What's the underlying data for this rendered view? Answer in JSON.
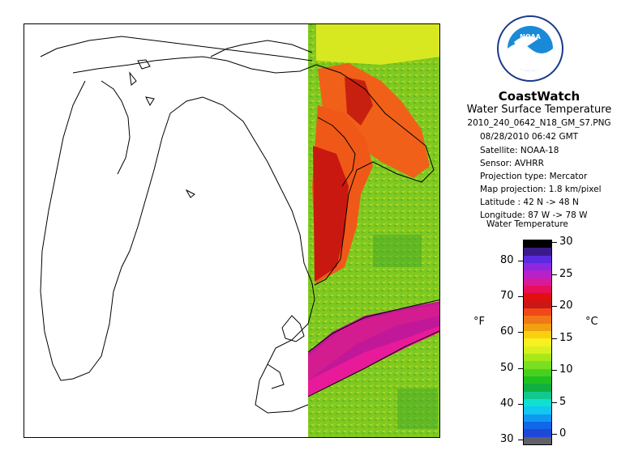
{
  "header": {
    "brand": "CoastWatch",
    "subtitle": "Water Surface Temperature",
    "filename": "2010_240_0642_N18_GM_S7.PNG",
    "datetime": "08/28/2010    06:42 GMT",
    "satellite": "Satellite: NOAA-18",
    "sensor": "Sensor: AVHRR",
    "projection": "Projection type:  Mercator",
    "resolution": "Map projection: 1.8 km/pixel",
    "latitude": "Latitude : 42 N -> 48 N",
    "longitude": "Longitude: 87 W -> 78 W"
  },
  "logo": {
    "text": "NOAA",
    "icon": "noaa-logo-icon"
  },
  "legend": {
    "title": "Water Temperature",
    "unit_f": "°F",
    "unit_c": "°C",
    "fahrenheit_ticks": [
      "80",
      "70",
      "60",
      "50",
      "40",
      "30"
    ],
    "celsius_ticks": [
      "30",
      "25",
      "20",
      "15",
      "10",
      "5",
      "0"
    ],
    "colors": [
      "#000000",
      "#3a1a8a",
      "#5a2ae0",
      "#8c28e0",
      "#b820c8",
      "#d81a9a",
      "#e80e5a",
      "#e01010",
      "#c81818",
      "#f04818",
      "#f07818",
      "#f0a010",
      "#f8d010",
      "#f8f020",
      "#d8f020",
      "#a8e818",
      "#78e020",
      "#48d020",
      "#20c020",
      "#10b040",
      "#10c890",
      "#10e0d0",
      "#10c8f0",
      "#1098f0",
      "#1068e8",
      "#2048d8",
      "#606068"
    ]
  }
}
